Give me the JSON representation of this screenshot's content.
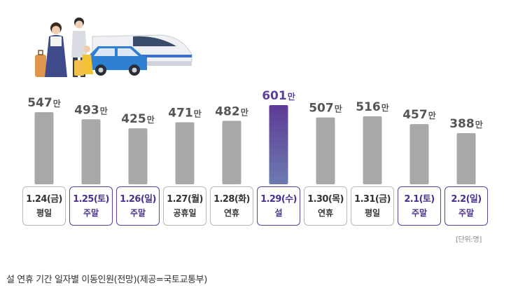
{
  "chart_data": {
    "type": "bar",
    "categories": [
      "1.24(금)",
      "1.25(토)",
      "1.26(일)",
      "1.27(월)",
      "1.28(화)",
      "1.29(수)",
      "1.30(목)",
      "1.31(금)",
      "2.1(토)",
      "2.2(일)"
    ],
    "day_types": [
      "평일",
      "주말",
      "주말",
      "공휴일",
      "연휴",
      "설",
      "연휴",
      "평일",
      "주말",
      "주말"
    ],
    "values": [
      547,
      493,
      425,
      471,
      482,
      601,
      507,
      516,
      457,
      388
    ],
    "value_unit": "만",
    "highlight_index": 5,
    "weekend_indices": [
      1,
      2,
      8,
      9
    ],
    "unit_note": "[단위:명]",
    "ylim": [
      0,
      601
    ],
    "grid": false,
    "colors": {
      "bar": "#a8a8a8",
      "highlight_bar_top": "#5e3a96",
      "highlight_bar_bottom": "#6c7bb0",
      "value_text": "#555555",
      "highlight_value_text": "#5c3f9e"
    }
  },
  "caption": "설 연휴 기간 일자별 이동인원(전망)(제공=국토교통부)",
  "illustration": "family-with-luggage-train-and-car"
}
